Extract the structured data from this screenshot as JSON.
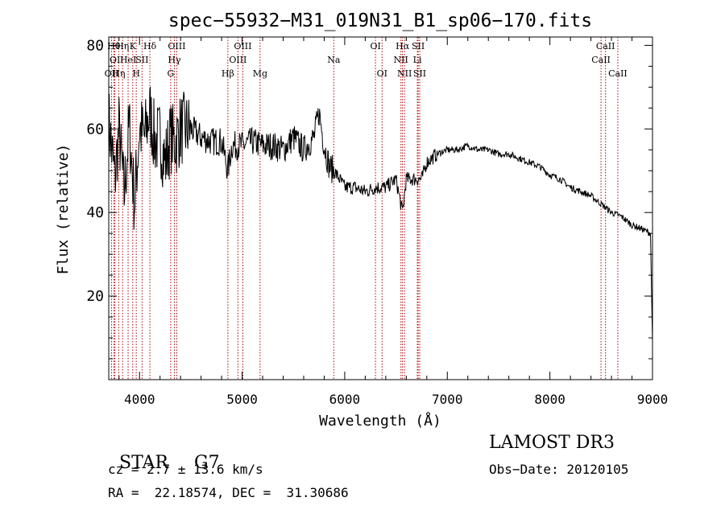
{
  "chart_data": {
    "type": "line",
    "title": "spec−55932−M31_019N31_B1_sp06−170.fits",
    "xlabel": "Wavelength (Å)",
    "ylabel": "Flux (relative)",
    "xlim": [
      3700,
      9000
    ],
    "ylim": [
      0,
      82
    ],
    "xticks": [
      4000,
      5000,
      6000,
      7000,
      8000,
      9000
    ],
    "yticks": [
      20,
      40,
      60,
      80
    ],
    "series": [
      {
        "name": "flux",
        "x": [
          3700,
          3760,
          3800,
          3850,
          3900,
          3950,
          4000,
          4050,
          4100,
          4150,
          4200,
          4250,
          4300,
          4350,
          4400,
          4500,
          4600,
          4700,
          4800,
          4861,
          4900,
          5000,
          5100,
          5200,
          5300,
          5400,
          5500,
          5600,
          5700,
          5750,
          5800,
          5850,
          5893,
          5950,
          6000,
          6100,
          6200,
          6300,
          6400,
          6500,
          6563,
          6600,
          6700,
          6750,
          6800,
          6900,
          7000,
          7100,
          7200,
          7300,
          7400,
          7500,
          7600,
          7700,
          7800,
          7900,
          8000,
          8100,
          8200,
          8300,
          8400,
          8500,
          8600,
          8700,
          8800,
          8900,
          8980,
          9000
        ],
        "values": [
          62,
          48,
          60,
          44,
          61,
          42,
          60,
          58,
          64,
          57,
          58,
          52,
          58,
          57,
          60,
          60,
          58,
          57,
          57,
          50,
          56,
          56,
          57,
          56,
          56,
          55,
          58,
          55,
          58,
          64,
          56,
          51,
          50,
          48,
          46,
          46,
          45,
          46,
          46,
          48,
          40,
          48,
          48,
          48,
          52,
          54,
          55,
          55,
          56,
          55,
          55,
          54,
          54,
          53,
          52,
          51,
          49,
          48,
          46,
          45,
          44,
          42,
          40,
          39,
          37,
          36,
          35,
          9
        ]
      }
    ],
    "line_colors": {
      "spectrum": "#000000",
      "lines": "#b30000"
    },
    "lines": [
      {
        "wl": 3727,
        "label": "OII",
        "row": 3
      },
      {
        "wl": 3750,
        "label": "Hθ",
        "row": 1
      },
      {
        "wl": 3760,
        "label": "OI",
        "row": 2
      },
      {
        "wl": 3797,
        "label": "Hη",
        "row": 3
      },
      {
        "wl": 3835,
        "label": "Hη",
        "row": 1
      },
      {
        "wl": 3889,
        "label": "HeI",
        "row": 2
      },
      {
        "wl": 3934,
        "label": "K",
        "row": 1
      },
      {
        "wl": 3968,
        "label": "H",
        "row": 3
      },
      {
        "wl": 4025,
        "label": "SII",
        "row": 2
      },
      {
        "wl": 4101,
        "label": "Hδ",
        "row": 1
      },
      {
        "wl": 4340,
        "label": "Hγ",
        "row": 2
      },
      {
        "wl": 4304,
        "label": "G",
        "row": 3
      },
      {
        "wl": 4363,
        "label": "OIII",
        "row": 1
      },
      {
        "wl": 4861,
        "label": "Hβ",
        "row": 3
      },
      {
        "wl": 4959,
        "label": "OIII",
        "row": 2
      },
      {
        "wl": 5007,
        "label": "OIII",
        "row": 1
      },
      {
        "wl": 5175,
        "label": "Mg",
        "row": 3
      },
      {
        "wl": 5893,
        "label": "Na",
        "row": 2
      },
      {
        "wl": 6300,
        "label": "OI",
        "row": 1
      },
      {
        "wl": 6364,
        "label": "OI",
        "row": 3
      },
      {
        "wl": 6548,
        "label": "NII",
        "row": 2
      },
      {
        "wl": 6563,
        "label": "Hα",
        "row": 1
      },
      {
        "wl": 6583,
        "label": "NII",
        "row": 3
      },
      {
        "wl": 6708,
        "label": "Li",
        "row": 2
      },
      {
        "wl": 6716,
        "label": "SII",
        "row": 1
      },
      {
        "wl": 6731,
        "label": "SII",
        "row": 3
      },
      {
        "wl": 8498,
        "label": "CaII",
        "row": 2
      },
      {
        "wl": 8542,
        "label": "CaII",
        "row": 1
      },
      {
        "wl": 8662,
        "label": "CaII",
        "row": 3
      }
    ]
  },
  "info": {
    "class": "STAR",
    "subclass": "G7",
    "survey": "LAMOST DR3",
    "cz": "cz = 2.7 ± 13.6 km/s",
    "obs_date": "Obs−Date: 20120105",
    "radec": "RA =  22.18574, DEC =  31.30686"
  }
}
